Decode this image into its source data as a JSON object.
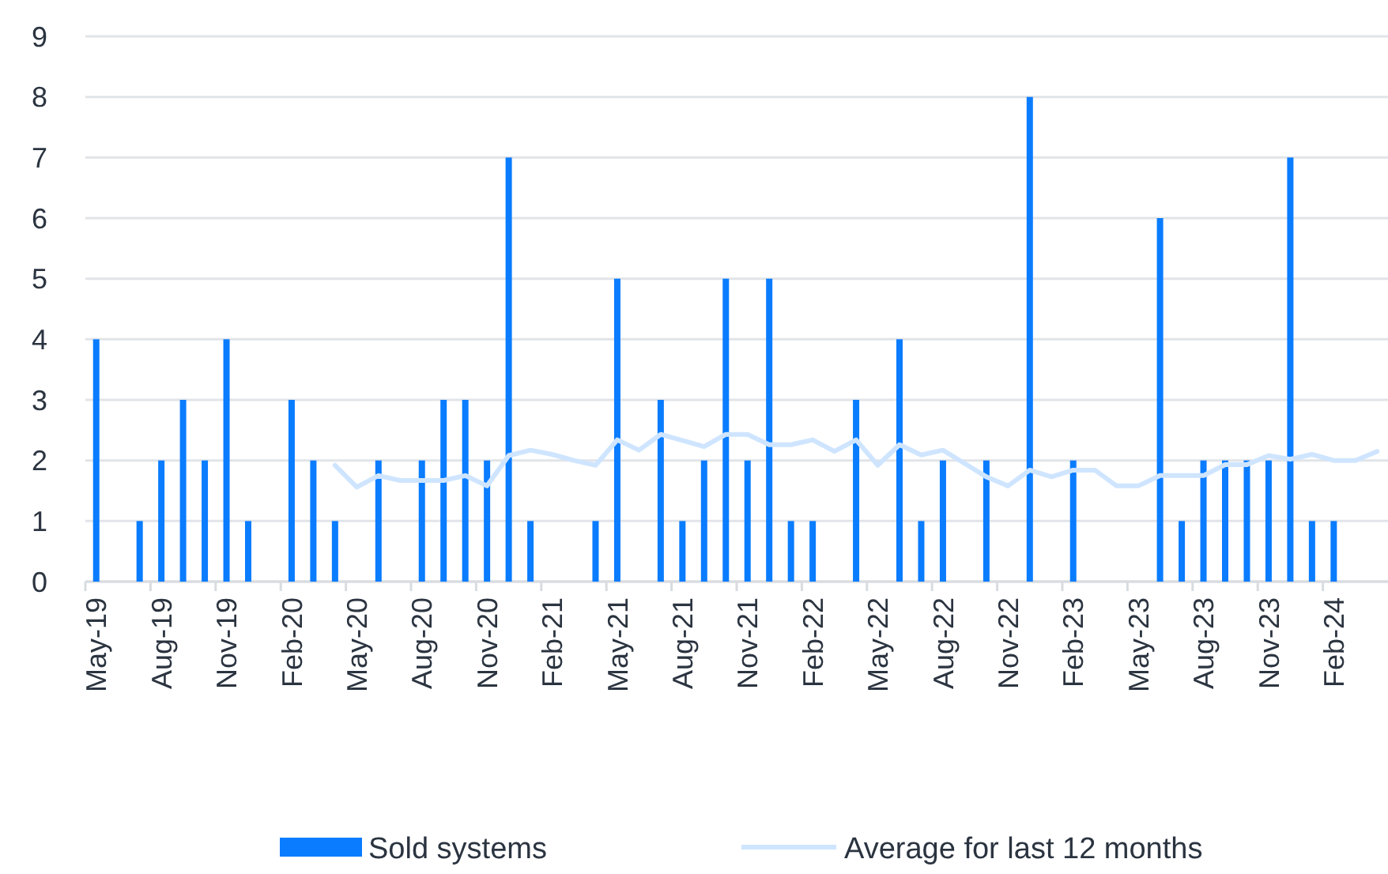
{
  "chart_data": {
    "type": "bar",
    "categories": [
      "May-19",
      null,
      null,
      "Aug-19",
      null,
      null,
      "Nov-19",
      null,
      null,
      "Feb-20",
      null,
      null,
      "May-20",
      null,
      null,
      "Aug-20",
      null,
      null,
      "Nov-20",
      null,
      null,
      "Feb-21",
      null,
      null,
      "May-21",
      null,
      null,
      "Aug-21",
      null,
      null,
      "Nov-21",
      null,
      null,
      "Feb-22",
      null,
      null,
      "May-22",
      null,
      null,
      "Aug-22",
      null,
      null,
      "Nov-22",
      null,
      null,
      "Feb-23",
      null,
      null,
      "May-23",
      null,
      null,
      "Aug-23",
      null,
      null,
      "Nov-23",
      null,
      null,
      "Feb-24",
      null,
      null
    ],
    "series": [
      {
        "name": "Sold systems",
        "color": "#0a7cff",
        "values": [
          4,
          0,
          1,
          2,
          3,
          2,
          4,
          1,
          0,
          3,
          2,
          1,
          0,
          2,
          0,
          2,
          3,
          3,
          2,
          7,
          1,
          0,
          0,
          1,
          5,
          0,
          3,
          1,
          2,
          5,
          2,
          5,
          1,
          1,
          0,
          3,
          0,
          4,
          1,
          2,
          0,
          2,
          0,
          8,
          0,
          2,
          0,
          0,
          0,
          6,
          1,
          2,
          2,
          2,
          2,
          7,
          1,
          1,
          0,
          0
        ]
      },
      {
        "name": "Average for last 12 months",
        "type": "line",
        "color": "#cfe5ff",
        "values": [
          null,
          null,
          null,
          null,
          null,
          null,
          null,
          null,
          null,
          null,
          null,
          1.92,
          1.56,
          1.75,
          1.67,
          1.67,
          1.67,
          1.75,
          1.58,
          2.08,
          2.17,
          2.1,
          2.0,
          1.92,
          2.34,
          2.17,
          2.43,
          2.33,
          2.23,
          2.43,
          2.43,
          2.26,
          2.26,
          2.34,
          2.15,
          2.34,
          1.92,
          2.26,
          2.09,
          2.17,
          1.95,
          1.73,
          1.58,
          1.84,
          1.73,
          1.84,
          1.84,
          1.58,
          1.58,
          1.75,
          1.75,
          1.75,
          1.93,
          1.93,
          2.08,
          2.02,
          2.1,
          2.0,
          2.0,
          2.15
        ]
      }
    ],
    "ylim": [
      0,
      9
    ],
    "yticks": [
      0,
      1,
      2,
      3,
      4,
      5,
      6,
      7,
      8,
      9
    ],
    "grid": "y",
    "legend": "bottom"
  }
}
